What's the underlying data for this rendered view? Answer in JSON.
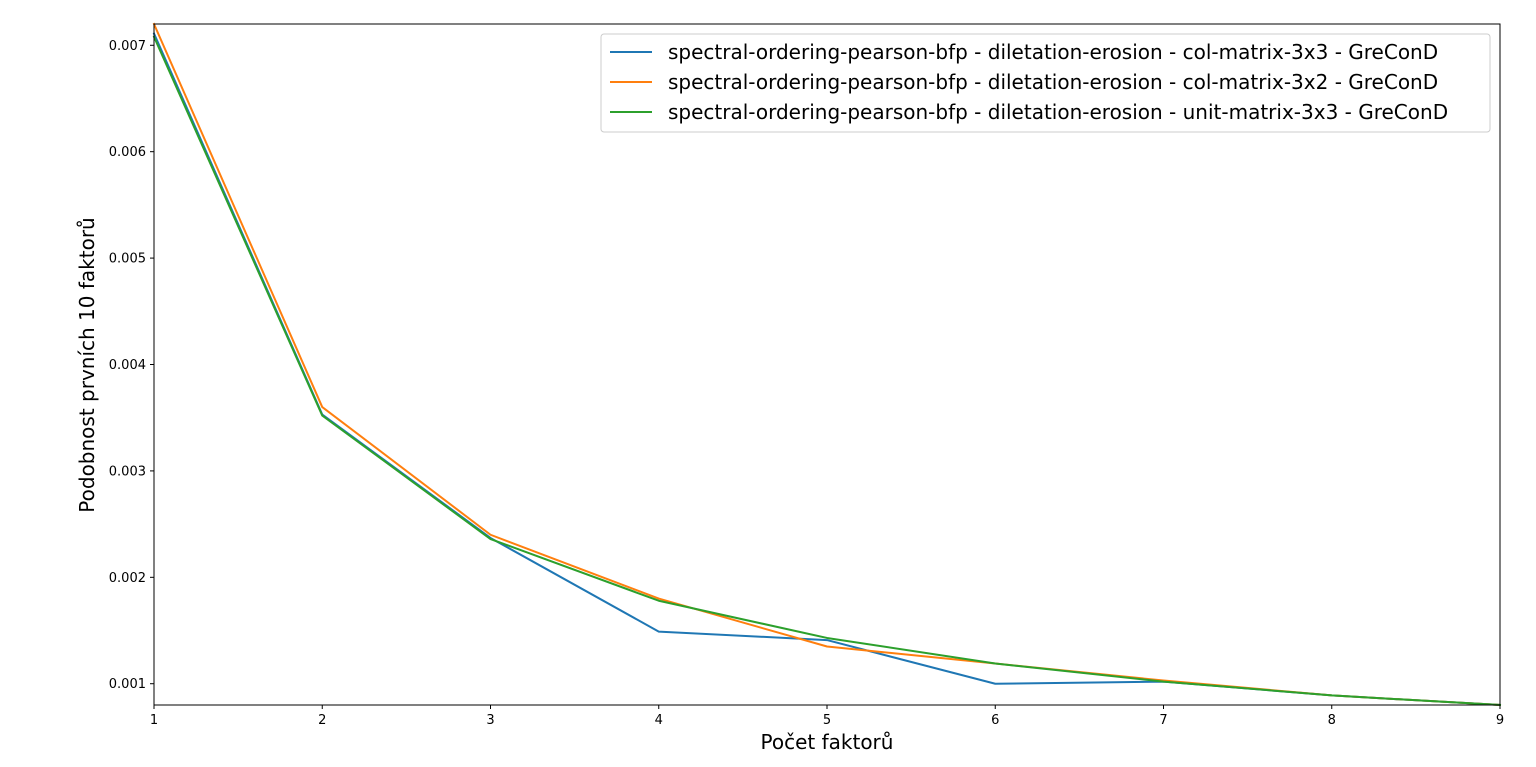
{
  "chart_data": {
    "type": "line",
    "title": "",
    "xlabel": "Počet faktorů",
    "ylabel": "Podobnost prvních 10 faktorů",
    "x": [
      1,
      2,
      3,
      4,
      5,
      6,
      7,
      8,
      9
    ],
    "xlim": [
      1,
      9
    ],
    "ylim": [
      0.0008,
      0.0072
    ],
    "xticks": [
      "1",
      "2",
      "3",
      "4",
      "5",
      "6",
      "7",
      "8",
      "9"
    ],
    "xtick_values": [
      1,
      2,
      3,
      4,
      5,
      6,
      7,
      8,
      9
    ],
    "yticks": [
      "0.001",
      "0.002",
      "0.003",
      "0.004",
      "0.005",
      "0.006",
      "0.007"
    ],
    "ytick_values": [
      0.001,
      0.002,
      0.003,
      0.004,
      0.005,
      0.006,
      0.007
    ],
    "grid": false,
    "legend_position": "top-right",
    "series": [
      {
        "name": "spectral-ordering-pearson-bfp - diletation-erosion - col-matrix-3x3 - GreConD",
        "color": "#1f77b4",
        "values": [
          0.00711,
          0.00353,
          0.00237,
          0.00149,
          0.00141,
          0.001,
          0.00102,
          0.00089,
          0.0008
        ]
      },
      {
        "name": "spectral-ordering-pearson-bfp - diletation-erosion - col-matrix-3x2 - GreConD",
        "color": "#ff7f0e",
        "values": [
          0.0072,
          0.0036,
          0.0024,
          0.0018,
          0.00135,
          0.00119,
          0.00103,
          0.00089,
          0.0008
        ]
      },
      {
        "name": "spectral-ordering-pearson-bfp - diletation-erosion - unit-matrix-3x3 - GreConD",
        "color": "#2ca02c",
        "values": [
          0.00708,
          0.00352,
          0.00236,
          0.00178,
          0.00143,
          0.00119,
          0.00102,
          0.00089,
          0.0008
        ]
      }
    ]
  }
}
